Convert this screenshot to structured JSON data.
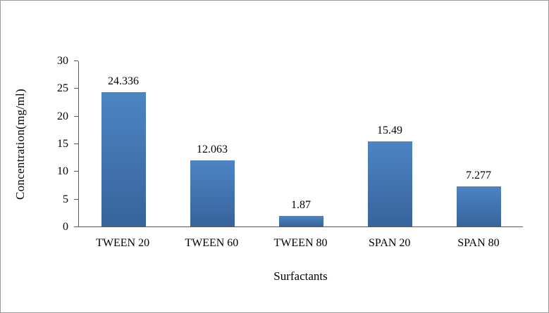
{
  "chart_data": {
    "type": "bar",
    "title": "",
    "xlabel": "Surfactants",
    "ylabel": "Concentration(mg/ml)",
    "categories": [
      "TWEEN 20",
      "TWEEN 60",
      "TWEEN 80",
      "SPAN 20",
      "SPAN 80"
    ],
    "values": [
      24.336,
      12.063,
      1.87,
      15.49,
      7.277
    ],
    "value_labels": [
      "24.336",
      "12.063",
      "1.87",
      "15.49",
      "7.277"
    ],
    "ylim": [
      0,
      30
    ],
    "yticks": [
      0,
      5,
      10,
      15,
      20,
      25,
      30
    ],
    "grid": false,
    "legend": false
  },
  "colors": {
    "bar_gradient_top": "#4d84c4",
    "bar_gradient_bottom": "#38639c",
    "axis": "#595959",
    "frame_border": "#9b9b9b",
    "background": "#ffffff",
    "text": "#000000"
  }
}
